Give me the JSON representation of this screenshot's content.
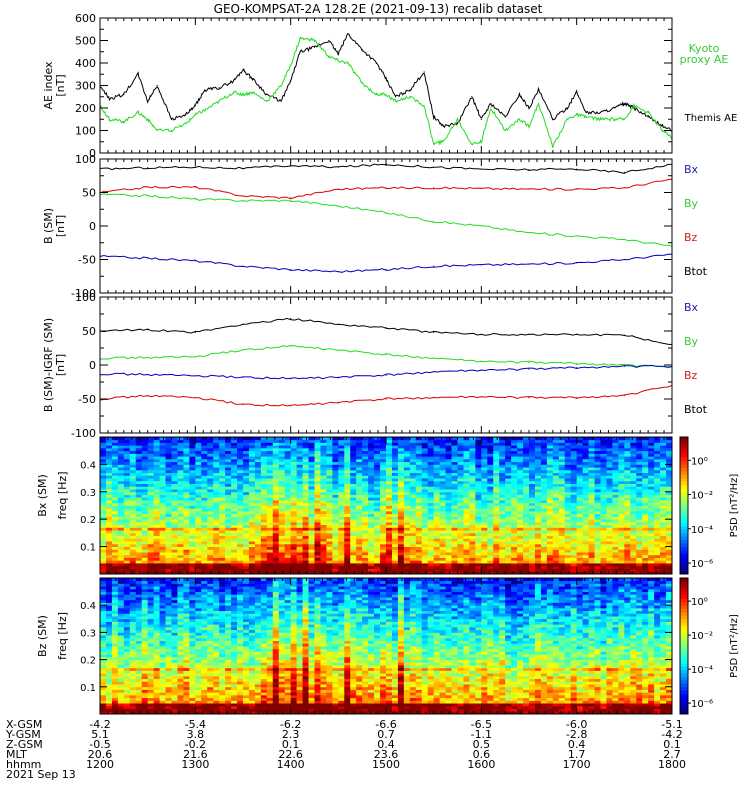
{
  "title": "GEO-KOMPSAT-2A 128.2E (2021-09-13) recalib dataset",
  "colors": {
    "black": "#000000",
    "green": "#22dd22",
    "red": "#dd0000",
    "blue": "#0000bb",
    "legend_green": "#33cc33",
    "legend_red": "#cc2222",
    "legend_blue": "#2222aa"
  },
  "x_axis": {
    "tick_times": [
      "1200",
      "1300",
      "1400",
      "1500",
      "1600",
      "1700",
      "1800"
    ],
    "xlim_hours": [
      12,
      18
    ]
  },
  "ephemeris": {
    "row_labels": [
      "X-GSM",
      "Y-GSM",
      "Z-GSM",
      "MLT",
      "hhmm"
    ],
    "rows": [
      [
        "-4.2",
        "-5.4",
        "-6.2",
        "-6.6",
        "-6.5",
        "-6.0",
        "-5.1"
      ],
      [
        "5.1",
        "3.8",
        "2.3",
        "0.7",
        "-1.1",
        "-2.8",
        "-4.2"
      ],
      [
        "-0.5",
        "-0.2",
        "0.1",
        "0.4",
        "0.5",
        "0.4",
        "0.1"
      ],
      [
        "20.6",
        "21.6",
        "22.6",
        "23.6",
        "0.6",
        "1.7",
        "2.7"
      ],
      [
        "1200",
        "1300",
        "1400",
        "1500",
        "1600",
        "1700",
        "1800"
      ]
    ],
    "date": "2021 Sep 13"
  },
  "chart_data": [
    {
      "type": "line",
      "ylabel": "AE index [nT]",
      "ylim": [
        0,
        600
      ],
      "yticks": [
        "0",
        "100",
        "200",
        "300",
        "400",
        "500",
        "600"
      ],
      "legend": [
        "Kyoto proxy AE",
        "Themis AE"
      ],
      "x_hours": [
        12.0,
        12.1,
        12.25,
        12.4,
        12.5,
        12.6,
        12.75,
        12.9,
        13.0,
        13.1,
        13.25,
        13.4,
        13.5,
        13.6,
        13.75,
        13.9,
        14.0,
        14.1,
        14.25,
        14.4,
        14.5,
        14.6,
        14.75,
        14.9,
        15.0,
        15.1,
        15.25,
        15.4,
        15.5,
        15.6,
        15.75,
        15.9,
        16.0,
        16.1,
        16.25,
        16.4,
        16.5,
        16.6,
        16.75,
        16.9,
        17.0,
        17.1,
        17.25,
        17.4,
        17.5,
        17.6,
        17.75,
        17.9,
        18.0
      ],
      "series": [
        {
          "name": "Themis AE",
          "color": "#000000",
          "values": [
            300,
            240,
            260,
            350,
            230,
            300,
            150,
            170,
            210,
            280,
            290,
            320,
            370,
            330,
            260,
            230,
            320,
            450,
            470,
            500,
            440,
            530,
            460,
            400,
            330,
            250,
            280,
            360,
            160,
            120,
            130,
            250,
            150,
            220,
            160,
            260,
            200,
            280,
            150,
            200,
            270,
            180,
            180,
            200,
            220,
            200,
            160,
            120,
            100
          ]
        },
        {
          "name": "Kyoto proxy AE",
          "color": "#22dd22",
          "values": [
            210,
            150,
            140,
            180,
            150,
            100,
            100,
            130,
            170,
            190,
            230,
            270,
            260,
            270,
            230,
            300,
            390,
            510,
            500,
            430,
            410,
            400,
            310,
            260,
            260,
            230,
            250,
            210,
            40,
            50,
            150,
            40,
            50,
            200,
            100,
            150,
            120,
            220,
            30,
            150,
            170,
            160,
            150,
            150,
            150,
            210,
            180,
            100,
            70
          ]
        }
      ]
    },
    {
      "type": "line",
      "ylabel": "B (SM) [nT]",
      "ylim": [
        -100,
        100
      ],
      "yticks": [
        "-100",
        "-50",
        "0",
        "50",
        "100"
      ],
      "legend": [
        "Bx",
        "By",
        "Bz",
        "Btot"
      ],
      "x_hours": [
        12.0,
        12.5,
        13.0,
        13.5,
        14.0,
        14.5,
        15.0,
        15.5,
        16.0,
        16.5,
        17.0,
        17.5,
        18.0
      ],
      "series": [
        {
          "name": "Btot",
          "color": "#000000",
          "values": [
            85,
            87,
            88,
            86,
            90,
            88,
            92,
            88,
            85,
            84,
            85,
            80,
            92
          ]
        },
        {
          "name": "Bz",
          "color": "#dd0000",
          "values": [
            50,
            58,
            58,
            45,
            42,
            55,
            57,
            57,
            56,
            55,
            55,
            57,
            70
          ]
        },
        {
          "name": "By",
          "color": "#22dd22",
          "values": [
            47,
            45,
            40,
            38,
            38,
            30,
            20,
            7,
            0,
            -10,
            -15,
            -20,
            -30
          ]
        },
        {
          "name": "Bx",
          "color": "#0000bb",
          "values": [
            -45,
            -48,
            -52,
            -60,
            -65,
            -68,
            -65,
            -60,
            -58,
            -57,
            -55,
            -50,
            -42
          ]
        }
      ]
    },
    {
      "type": "line",
      "ylabel": "B (SM)-IGRF (SM) [nT]",
      "ylim": [
        -100,
        100
      ],
      "yticks": [
        "-100",
        "-50",
        "0",
        "50",
        "100"
      ],
      "legend": [
        "Bx",
        "By",
        "Bz",
        "Btot"
      ],
      "x_hours": [
        12.0,
        12.5,
        13.0,
        13.5,
        14.0,
        14.5,
        15.0,
        15.5,
        16.0,
        16.5,
        17.0,
        17.5,
        18.0
      ],
      "series": [
        {
          "name": "Btot",
          "color": "#000000",
          "values": [
            50,
            52,
            48,
            60,
            68,
            60,
            55,
            48,
            45,
            45,
            45,
            44,
            30
          ]
        },
        {
          "name": "By",
          "color": "#22dd22",
          "values": [
            10,
            11,
            12,
            22,
            28,
            22,
            15,
            10,
            5,
            4,
            2,
            0,
            -3
          ]
        },
        {
          "name": "Bx",
          "color": "#0000bb",
          "values": [
            -13,
            -14,
            -16,
            -18,
            -20,
            -18,
            -15,
            -10,
            -8,
            -6,
            -4,
            -2,
            -2
          ]
        },
        {
          "name": "Bz",
          "color": "#dd0000",
          "values": [
            -50,
            -45,
            -48,
            -58,
            -60,
            -55,
            -50,
            -48,
            -47,
            -48,
            -48,
            -45,
            -30
          ]
        }
      ]
    },
    {
      "type": "heatmap",
      "ylabel": "Bx (SM) freq [Hz]",
      "ylim": [
        0,
        0.5
      ],
      "yticks": [
        "0.1",
        "0.2",
        "0.3",
        "0.4"
      ],
      "colorbar_label": "PSD [nT²/Hz]",
      "colorbar_ticks": [
        "10⁰",
        "10⁻²",
        "10⁻⁴",
        "10⁻⁶"
      ]
    },
    {
      "type": "heatmap",
      "ylabel": "Bz (SM) freq [Hz]",
      "ylim": [
        0,
        0.5
      ],
      "yticks": [
        "0.1",
        "0.2",
        "0.3",
        "0.4"
      ],
      "colorbar_label": "PSD [nT²/Hz]",
      "colorbar_ticks": [
        "10⁰",
        "10⁻²",
        "10⁻⁴",
        "10⁻⁶"
      ]
    }
  ]
}
